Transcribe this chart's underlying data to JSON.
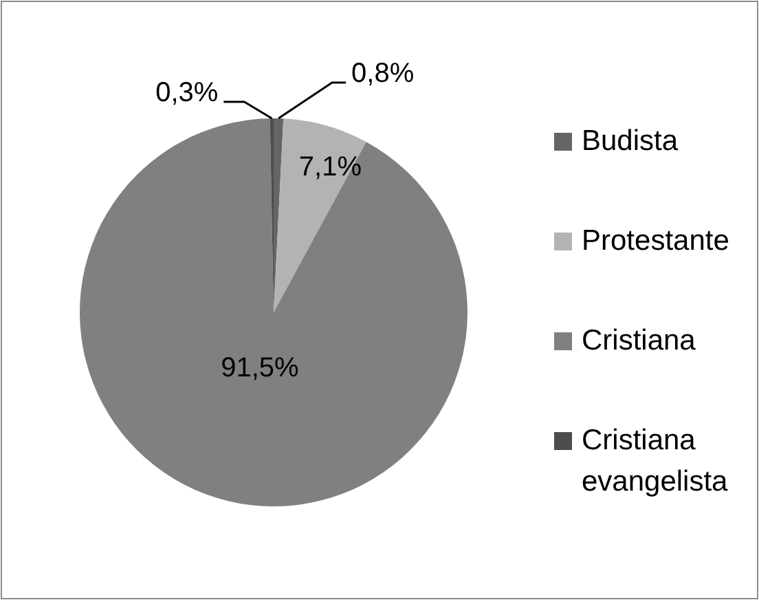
{
  "chart_data": {
    "type": "pie",
    "categories": [
      "Budista",
      "Protestante",
      "Cristiana",
      "Cristiana evangelista"
    ],
    "values": [
      0.8,
      7.1,
      91.5,
      0.3
    ],
    "colors": [
      "#656565",
      "#b3b3b3",
      "#808080",
      "#4d4d4d"
    ],
    "value_labels": [
      "0,8%",
      "7,1%",
      "91,5%",
      "0,3%"
    ],
    "legend": "right"
  }
}
